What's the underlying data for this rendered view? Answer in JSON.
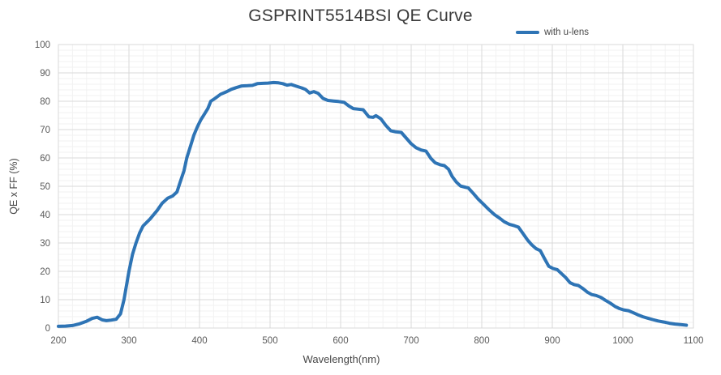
{
  "title": "GSPRINT5514BSI QE Curve",
  "legend": {
    "items": [
      {
        "label": "with u-lens",
        "color": "#2e74b5"
      }
    ]
  },
  "axes": {
    "x": {
      "label": "Wavelength(nm)",
      "ticks": [
        "200",
        "300",
        "400",
        "500",
        "600",
        "700",
        "800",
        "900",
        "1000",
        "1100"
      ]
    },
    "y": {
      "label": "QE x FF (%)",
      "ticks": [
        "0",
        "10",
        "20",
        "30",
        "40",
        "50",
        "60",
        "70",
        "80",
        "90",
        "100"
      ]
    }
  },
  "colors": {
    "line": "#2e74b5",
    "grid_major": "#d9d9d9",
    "grid_minor": "#f2f2f2",
    "tick_text": "#595959",
    "title_text": "#3a3a3a"
  },
  "chart_data": {
    "type": "line",
    "title": "GSPRINT5514BSI QE Curve",
    "xlabel": "Wavelength(nm)",
    "ylabel": "QE x FF (%)",
    "xlim": [
      200,
      1100
    ],
    "ylim": [
      0,
      100
    ],
    "x_tick_step": 100,
    "y_tick_step": 10,
    "x_minor_step": 20,
    "y_minor_step": 2,
    "grid": true,
    "legend_position": "top-right",
    "series": [
      {
        "name": "with u-lens",
        "color": "#2e74b5",
        "x": [
          200,
          210,
          220,
          230,
          240,
          248,
          255,
          262,
          268,
          275,
          282,
          288,
          293,
          300,
          305,
          310,
          315,
          320,
          330,
          340,
          347,
          355,
          362,
          368,
          372,
          378,
          382,
          387,
          392,
          397,
          402,
          407,
          412,
          416,
          422,
          430,
          438,
          445,
          452,
          460,
          468,
          475,
          482,
          490,
          497,
          505,
          512,
          518,
          524,
          530,
          537,
          545,
          550,
          556,
          562,
          568,
          575,
          582,
          590,
          597,
          605,
          612,
          618,
          625,
          632,
          640,
          646,
          650,
          657,
          664,
          671,
          678,
          686,
          693,
          700,
          707,
          714,
          721,
          728,
          734,
          741,
          747,
          753,
          758,
          764,
          770,
          776,
          781,
          788,
          795,
          802,
          810,
          818,
          825,
          832,
          839,
          846,
          852,
          858,
          865,
          871,
          877,
          883,
          889,
          895,
          901,
          907,
          913,
          919,
          925,
          931,
          937,
          944,
          950,
          956,
          962,
          969,
          975,
          982,
          989,
          995,
          1001,
          1008,
          1014,
          1021,
          1028,
          1035,
          1042,
          1050,
          1058,
          1066,
          1074,
          1082,
          1090
        ],
        "y": [
          0.6,
          0.7,
          0.9,
          1.5,
          2.4,
          3.4,
          3.8,
          2.9,
          2.6,
          2.8,
          3.1,
          5.0,
          10,
          20,
          26,
          30,
          33.5,
          36,
          38.5,
          41.5,
          44,
          45.8,
          46.6,
          48,
          51,
          55.5,
          60,
          64,
          68,
          71,
          73.5,
          75.5,
          77.5,
          80,
          81,
          82.5,
          83.3,
          84.2,
          84.8,
          85.4,
          85.5,
          85.6,
          86.2,
          86.3,
          86.4,
          86.6,
          86.5,
          86.2,
          85.7,
          85.9,
          85.3,
          84.7,
          84.2,
          82.9,
          83.4,
          82.8,
          81.0,
          80.3,
          80.1,
          79.9,
          79.6,
          78.3,
          77.4,
          77.2,
          77.0,
          74.5,
          74.3,
          74.9,
          73.8,
          71.5,
          69.6,
          69.2,
          69.0,
          67.0,
          65.0,
          63.6,
          62.8,
          62.4,
          59.8,
          58.3,
          57.6,
          57.3,
          56.0,
          53.5,
          51.5,
          50.1,
          49.7,
          49.4,
          47.5,
          45.5,
          43.8,
          41.8,
          40.0,
          38.8,
          37.5,
          36.6,
          36.1,
          35.6,
          33.5,
          31.0,
          29.3,
          28.0,
          27.3,
          24.5,
          21.8,
          21.0,
          20.6,
          19.2,
          17.8,
          16.0,
          15.3,
          15.0,
          13.8,
          12.6,
          11.8,
          11.5,
          10.8,
          9.8,
          8.8,
          7.6,
          6.9,
          6.4,
          6.1,
          5.5,
          4.7,
          4.0,
          3.5,
          3.0,
          2.5,
          2.1,
          1.7,
          1.4,
          1.2,
          1.0
        ]
      }
    ]
  }
}
